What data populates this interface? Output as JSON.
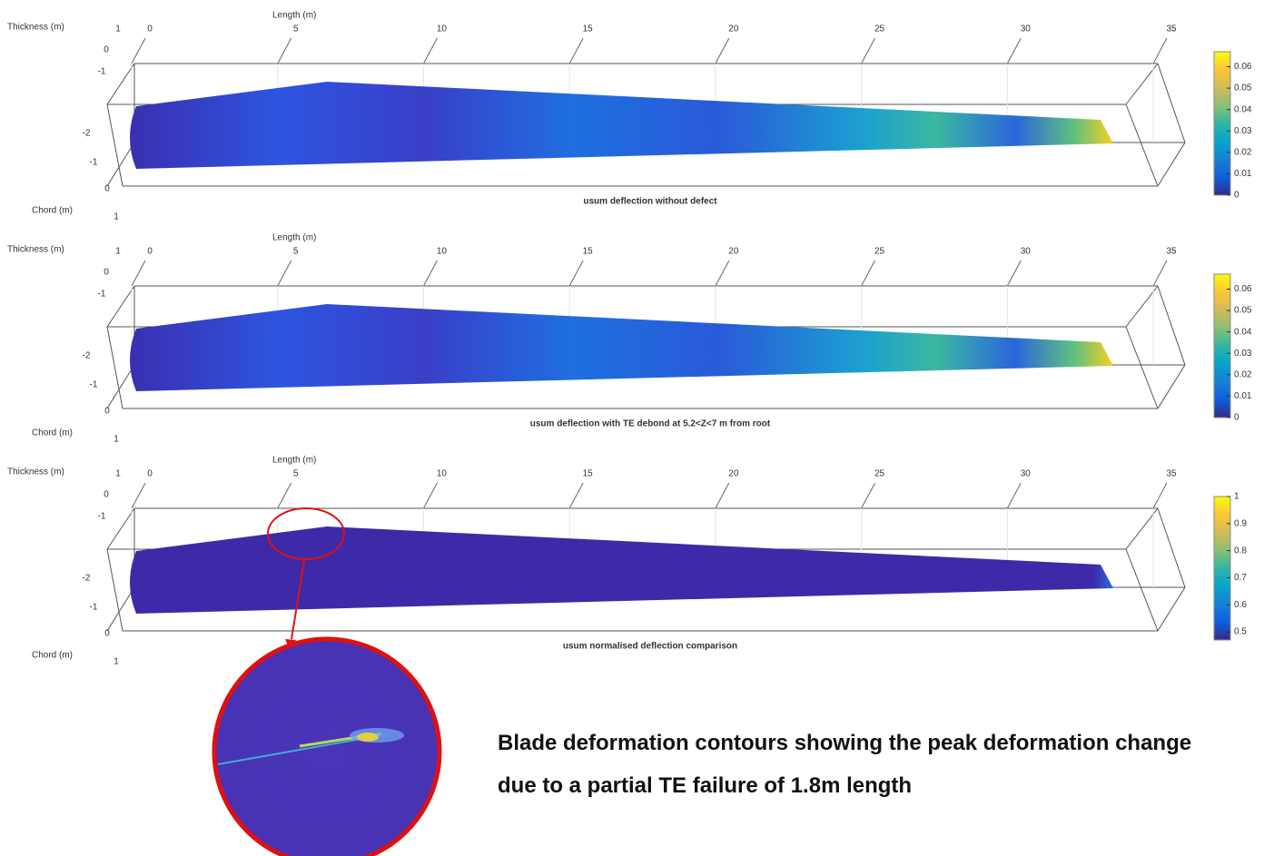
{
  "chart_data": [
    {
      "type": "surface",
      "title": "usum deflection without defect",
      "xlabel": "Length (m)",
      "ylabel": "Thickness (m)",
      "zlabel": "Chord (m)",
      "xlim": [
        0,
        35
      ],
      "xticks": [
        0,
        5,
        10,
        15,
        20,
        25,
        30,
        35
      ],
      "yticks": [
        1,
        0,
        -1,
        -2
      ],
      "zticks": [
        -1,
        0,
        1
      ],
      "clim": [
        0,
        0.067
      ],
      "cticks": [
        0,
        0.01,
        0.02,
        0.03,
        0.04,
        0.05,
        0.06
      ]
    },
    {
      "type": "surface",
      "title": "usum deflection with TE debond at 5.2<Z<7 m from root",
      "xlabel": "Length (m)",
      "ylabel": "Thickness (m)",
      "zlabel": "Chord (m)",
      "xlim": [
        0,
        35
      ],
      "xticks": [
        0,
        5,
        10,
        15,
        20,
        25,
        30,
        35
      ],
      "yticks": [
        1,
        0,
        -1,
        -2
      ],
      "zticks": [
        -1,
        0,
        1
      ],
      "clim": [
        0,
        0.067
      ],
      "cticks": [
        0,
        0.01,
        0.02,
        0.03,
        0.04,
        0.05,
        0.06
      ]
    },
    {
      "type": "surface",
      "title": "usum normalised deflection comparison",
      "xlabel": "Length (m)",
      "ylabel": "Thickness (m)",
      "zlabel": "Chord (m)",
      "xlim": [
        0,
        35
      ],
      "xticks": [
        0,
        5,
        10,
        15,
        20,
        25,
        30,
        35
      ],
      "yticks": [
        1,
        0,
        -1,
        -2
      ],
      "zticks": [
        -1,
        0,
        1
      ],
      "clim": [
        0.47,
        1.0
      ],
      "cticks": [
        0.5,
        0.6,
        0.7,
        0.8,
        0.9,
        1
      ]
    }
  ],
  "caption": "Blade deformation contours showing the peak deformation change due to a partial TE failure of 1.8m length"
}
